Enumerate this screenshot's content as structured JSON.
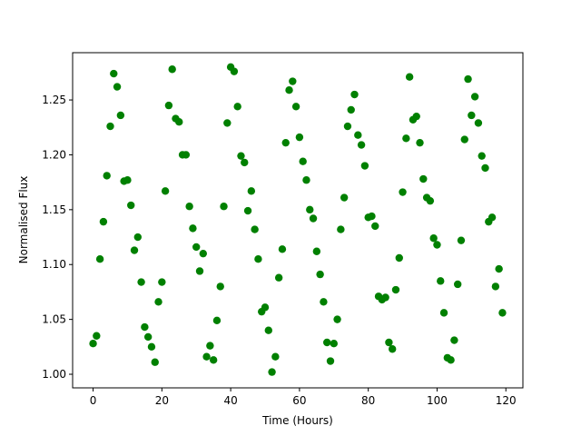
{
  "chart_data": {
    "type": "scatter",
    "xlabel": "Time (Hours)",
    "ylabel": "Normalised Flux",
    "xlim": [
      -5.95,
      124.95
    ],
    "ylim": [
      0.9876,
      1.2931
    ],
    "xticks": [
      0,
      20,
      40,
      60,
      80,
      100,
      120
    ],
    "yticks": [
      {
        "value": 1,
        "label": "1.00"
      },
      1.05,
      {
        "value": 1.1,
        "label": "1.10"
      },
      1.15,
      {
        "value": 1.2,
        "label": "1.20"
      },
      1.25
    ],
    "grid": false,
    "series": [
      {
        "color": "#008000",
        "x": [
          0,
          1,
          2,
          3,
          4,
          5,
          6,
          7,
          8,
          9,
          10,
          11,
          12,
          13,
          14,
          15,
          16,
          17,
          18,
          19,
          20,
          21,
          22,
          23,
          24,
          25,
          26,
          27,
          28,
          29,
          30,
          31,
          32,
          33,
          34,
          35,
          36,
          37,
          38,
          39,
          40,
          41,
          42,
          43,
          44,
          45,
          46,
          47,
          48,
          49,
          50,
          51,
          52,
          53,
          54,
          55,
          56,
          57,
          58,
          59,
          60,
          61,
          62,
          63,
          64,
          65,
          66,
          67,
          68,
          69,
          70,
          71,
          72,
          73,
          74,
          75,
          76,
          77,
          78,
          79,
          80,
          81,
          82,
          83,
          84,
          85,
          86,
          87,
          88,
          89,
          90,
          91,
          92,
          93,
          94,
          95,
          96,
          97,
          98,
          99,
          100,
          101,
          102,
          103,
          104,
          105,
          106,
          107,
          108,
          109,
          110,
          111,
          112,
          113,
          114,
          115,
          116,
          117,
          118,
          119
        ],
        "values": [
          1.028,
          1.035,
          1.105,
          1.139,
          1.181,
          1.226,
          1.274,
          1.262,
          1.236,
          1.176,
          1.177,
          1.154,
          1.113,
          1.125,
          1.084,
          1.043,
          1.034,
          1.025,
          1.011,
          1.066,
          1.084,
          1.167,
          1.245,
          1.278,
          1.233,
          1.23,
          1.2,
          1.2,
          1.153,
          1.133,
          1.116,
          1.094,
          1.11,
          1.016,
          1.026,
          1.013,
          1.049,
          1.08,
          1.153,
          1.229,
          1.28,
          1.276,
          1.244,
          1.199,
          1.193,
          1.149,
          1.167,
          1.132,
          1.105,
          1.057,
          1.061,
          1.04,
          1.002,
          1.016,
          1.088,
          1.114,
          1.211,
          1.259,
          1.267,
          1.244,
          1.216,
          1.194,
          1.177,
          1.15,
          1.142,
          1.112,
          1.091,
          1.066,
          1.029,
          1.012,
          1.028,
          1.05,
          1.132,
          1.161,
          1.226,
          1.241,
          1.255,
          1.218,
          1.209,
          1.19,
          1.143,
          1.144,
          1.135,
          1.071,
          1.068,
          1.07,
          1.029,
          1.023,
          1.077,
          1.106,
          1.166,
          1.215,
          1.271,
          1.232,
          1.235,
          1.211,
          1.178,
          1.161,
          1.158,
          1.124,
          1.118,
          1.085,
          1.056,
          1.015,
          1.013,
          1.031,
          1.082,
          1.122,
          1.214,
          1.269,
          1.236,
          1.253,
          1.229,
          1.199,
          1.188,
          1.139,
          1.143,
          1.08,
          1.096,
          1.056
        ]
      }
    ]
  }
}
